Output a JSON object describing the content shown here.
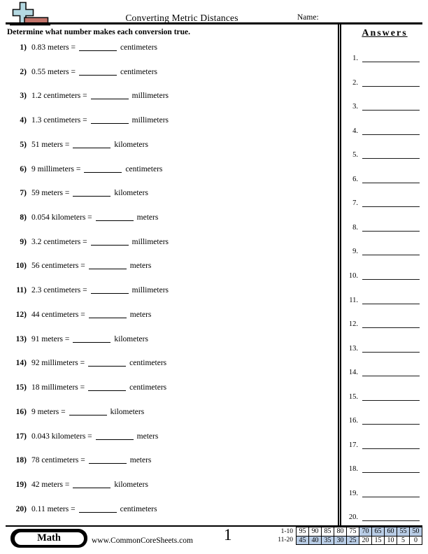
{
  "header": {
    "title": "Converting Metric Distances",
    "name_label": "Name:"
  },
  "logo": {
    "cross_color": "#b4d9e2",
    "bar_color": "#c3746b"
  },
  "instruction": "Determine what number makes each conversion true.",
  "questions": [
    {
      "num": "1)",
      "pre": "0.83 meters =",
      "post": "centimeters"
    },
    {
      "num": "2)",
      "pre": "0.55 meters =",
      "post": "centimeters"
    },
    {
      "num": "3)",
      "pre": "1.2 centimeters =",
      "post": "millimeters"
    },
    {
      "num": "4)",
      "pre": "1.3 centimeters =",
      "post": "millimeters"
    },
    {
      "num": "5)",
      "pre": "51 meters =",
      "post": "kilometers"
    },
    {
      "num": "6)",
      "pre": "9 millimeters =",
      "post": "centimeters"
    },
    {
      "num": "7)",
      "pre": "59 meters =",
      "post": "kilometers"
    },
    {
      "num": "8)",
      "pre": "0.054 kilometers =",
      "post": "meters"
    },
    {
      "num": "9)",
      "pre": "3.2 centimeters =",
      "post": "millimeters"
    },
    {
      "num": "10)",
      "pre": "56 centimeters =",
      "post": "meters"
    },
    {
      "num": "11)",
      "pre": "2.3 centimeters =",
      "post": "millimeters"
    },
    {
      "num": "12)",
      "pre": "44 centimeters =",
      "post": "meters"
    },
    {
      "num": "13)",
      "pre": "91 meters =",
      "post": "kilometers"
    },
    {
      "num": "14)",
      "pre": "92 millimeters =",
      "post": "centimeters"
    },
    {
      "num": "15)",
      "pre": "18 millimeters =",
      "post": "centimeters"
    },
    {
      "num": "16)",
      "pre": "9 meters =",
      "post": "kilometers"
    },
    {
      "num": "17)",
      "pre": "0.043 kilometers =",
      "post": "meters"
    },
    {
      "num": "18)",
      "pre": "78 centimeters =",
      "post": "meters"
    },
    {
      "num": "19)",
      "pre": "42 meters =",
      "post": "kilometers"
    },
    {
      "num": "20)",
      "pre": "0.11 meters =",
      "post": "centimeters"
    }
  ],
  "answers_panel": {
    "heading": "Answers",
    "items": [
      "1.",
      "2.",
      "3.",
      "4.",
      "5.",
      "6.",
      "7.",
      "8.",
      "9.",
      "10.",
      "11.",
      "12.",
      "13.",
      "14.",
      "15.",
      "16.",
      "17.",
      "18.",
      "19.",
      "20."
    ]
  },
  "footer": {
    "subject_label": "Math",
    "website": "www.CommonCoreSheets.com",
    "page_number": "1",
    "score_grid": {
      "shade_color": "#b9cde6",
      "rows": [
        {
          "label": "1-10",
          "values": [
            "95",
            "90",
            "85",
            "80",
            "75",
            "70",
            "65",
            "60",
            "55",
            "50"
          ],
          "shaded": [
            false,
            false,
            false,
            false,
            false,
            true,
            true,
            true,
            true,
            true
          ]
        },
        {
          "label": "11-20",
          "values": [
            "45",
            "40",
            "35",
            "30",
            "25",
            "20",
            "15",
            "10",
            "5",
            "0"
          ],
          "shaded": [
            true,
            true,
            true,
            true,
            true,
            false,
            false,
            false,
            false,
            false
          ]
        }
      ]
    }
  }
}
